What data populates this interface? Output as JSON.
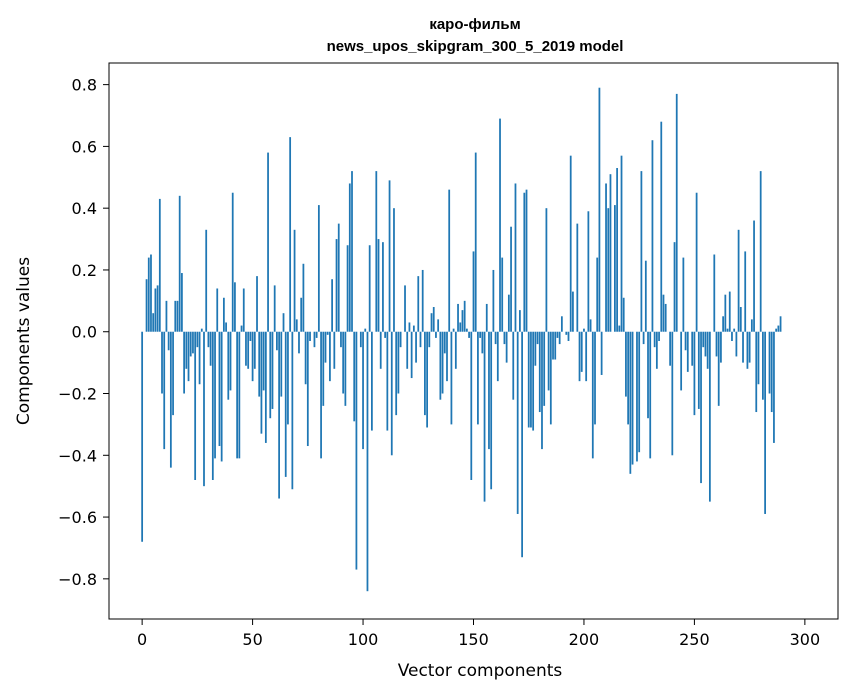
{
  "chart_data": {
    "type": "bar",
    "title": "каро-фильм",
    "subtitle": "news_upos_skipgram_300_5_2019 model",
    "xlabel": "Vector components",
    "ylabel": "Components values",
    "xlim": [
      -15,
      315
    ],
    "ylim": [
      -0.93,
      0.87
    ],
    "xticks": [
      0,
      50,
      100,
      150,
      200,
      250,
      300
    ],
    "yticks": [
      -0.8,
      -0.6,
      -0.4,
      -0.2,
      0.0,
      0.2,
      0.4,
      0.6,
      0.8
    ],
    "ytick_labels": [
      "−0.8",
      "−0.6",
      "−0.4",
      "−0.2",
      "0.0",
      "0.2",
      "0.4",
      "0.6",
      "0.8"
    ],
    "grid": false,
    "bar_color": "#1f77b4",
    "values": [
      -0.68,
      0.0,
      0.17,
      0.24,
      0.25,
      0.06,
      0.14,
      0.15,
      0.43,
      -0.2,
      -0.38,
      0.1,
      -0.06,
      -0.44,
      -0.27,
      0.1,
      0.1,
      0.44,
      0.19,
      -0.2,
      -0.12,
      -0.16,
      -0.08,
      -0.07,
      -0.48,
      -0.05,
      -0.17,
      0.01,
      -0.5,
      0.33,
      -0.05,
      -0.11,
      -0.48,
      -0.41,
      0.14,
      -0.37,
      -0.42,
      0.11,
      0.03,
      -0.22,
      -0.19,
      0.45,
      0.16,
      -0.41,
      -0.41,
      0.02,
      0.14,
      -0.11,
      -0.12,
      -0.03,
      -0.16,
      -0.12,
      0.18,
      -0.21,
      -0.33,
      -0.19,
      -0.36,
      0.58,
      -0.28,
      -0.25,
      0.15,
      -0.06,
      -0.54,
      -0.21,
      0.06,
      -0.47,
      -0.3,
      0.63,
      -0.51,
      0.33,
      0.04,
      -0.07,
      0.11,
      0.22,
      -0.17,
      -0.37,
      -0.03,
      0.0,
      -0.05,
      -0.02,
      0.41,
      -0.41,
      -0.24,
      -0.1,
      -0.01,
      -0.16,
      0.17,
      -0.12,
      0.3,
      0.35,
      -0.05,
      -0.2,
      -0.24,
      0.28,
      0.48,
      0.52,
      -0.29,
      -0.77,
      0.0,
      -0.05,
      -0.38,
      0.01,
      -0.84,
      0.28,
      -0.32,
      0.0,
      0.52,
      0.3,
      -0.12,
      0.29,
      -0.02,
      -0.32,
      0.49,
      -0.4,
      0.4,
      -0.27,
      -0.2,
      -0.05,
      0.0,
      0.15,
      -0.12,
      0.03,
      -0.15,
      0.02,
      -0.1,
      0.18,
      -0.05,
      0.2,
      -0.27,
      -0.31,
      -0.05,
      0.06,
      0.08,
      -0.02,
      0.04,
      -0.22,
      -0.2,
      -0.07,
      -0.16,
      0.46,
      -0.3,
      0.01,
      -0.12,
      0.09,
      0.03,
      0.07,
      0.1,
      0.01,
      -0.02,
      -0.48,
      0.26,
      0.58,
      -0.3,
      -0.02,
      -0.07,
      -0.55,
      0.09,
      -0.38,
      -0.51,
      0.2,
      -0.04,
      -0.16,
      0.69,
      0.24,
      -0.04,
      -0.1,
      0.12,
      0.34,
      -0.22,
      0.48,
      -0.59,
      0.07,
      -0.73,
      0.45,
      0.46,
      -0.31,
      -0.31,
      -0.32,
      -0.11,
      -0.04,
      -0.26,
      -0.38,
      -0.24,
      0.4,
      -0.19,
      -0.3,
      -0.09,
      -0.09,
      -0.02,
      -0.04,
      0.05,
      0.0,
      -0.01,
      -0.03,
      0.57,
      0.13,
      0.0,
      0.35,
      -0.16,
      -0.13,
      0.01,
      -0.16,
      0.39,
      0.04,
      -0.41,
      -0.3,
      0.24,
      0.79,
      -0.14,
      0.0,
      0.48,
      0.4,
      0.51,
      0.0,
      0.41,
      0.53,
      0.02,
      0.57,
      0.11,
      -0.21,
      -0.3,
      -0.46,
      -0.43,
      0.0,
      -0.42,
      -0.39,
      0.52,
      -0.04,
      0.23,
      -0.28,
      -0.41,
      0.62,
      -0.05,
      -0.12,
      -0.03,
      0.68,
      0.12,
      0.09,
      0.0,
      -0.11,
      -0.4,
      0.29,
      0.77,
      0.0,
      -0.19,
      0.24,
      -0.06,
      -0.13,
      0.0,
      -0.11,
      -0.27,
      0.45,
      -0.25,
      -0.49,
      -0.05,
      -0.08,
      -0.12,
      -0.55,
      0.0,
      0.25,
      -0.08,
      -0.24,
      -0.1,
      0.05,
      0.12,
      0.01,
      0.13,
      -0.03,
      0.01,
      -0.08,
      0.33,
      0.08,
      -0.1,
      0.26,
      -0.12,
      -0.1,
      0.04,
      0.36,
      -0.26,
      -0.17,
      0.52,
      -0.22,
      -0.59,
      0.0,
      -0.2,
      -0.26,
      -0.36,
      0.01,
      0.02,
      0.05
    ]
  }
}
